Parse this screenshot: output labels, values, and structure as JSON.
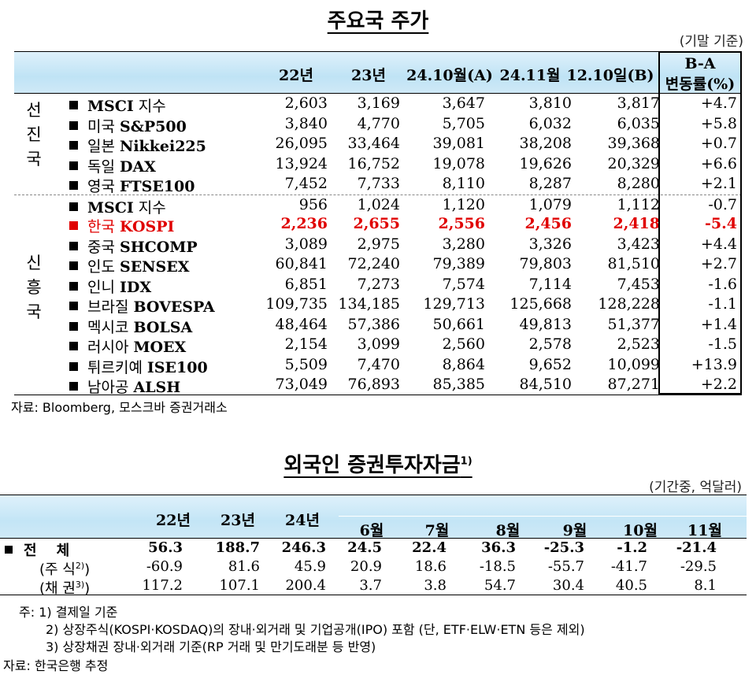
{
  "table1": {
    "title": "주요국 주가",
    "unit": "(기말 기준)",
    "headers": [
      "22년",
      "23년",
      "24.10월(A)",
      "24.11월",
      "12.10일(B)"
    ],
    "change_header_1": "B-A",
    "change_header_2": "변동률(%)",
    "groups": [
      {
        "label": [
          "선",
          "진",
          "국"
        ]
      },
      {
        "label": [
          "신",
          "흥",
          "국"
        ]
      }
    ],
    "rows": [
      {
        "ko": "MSCI",
        "en": "지수",
        "vals": [
          "2,603",
          "3,169",
          "3,647",
          "3,810",
          "3,817"
        ],
        "chg": "+4.7"
      },
      {
        "ko": "미국",
        "en": "S&P500",
        "vals": [
          "3,840",
          "4,770",
          "5,705",
          "6,032",
          "6,035"
        ],
        "chg": "+5.8"
      },
      {
        "ko": "일본",
        "en": "Nikkei225",
        "vals": [
          "26,095",
          "33,464",
          "39,081",
          "38,208",
          "39,368"
        ],
        "chg": "+0.7"
      },
      {
        "ko": "독일",
        "en": "DAX",
        "vals": [
          "13,924",
          "16,752",
          "19,078",
          "19,626",
          "20,329"
        ],
        "chg": "+6.6"
      },
      {
        "ko": "영국",
        "en": "FTSE100",
        "vals": [
          "7,452",
          "7,733",
          "8,110",
          "8,287",
          "8,280"
        ],
        "chg": "+2.1"
      },
      {
        "ko": "MSCI",
        "en": "지수",
        "vals": [
          "956",
          "1,024",
          "1,120",
          "1,079",
          "1,112"
        ],
        "chg": "-0.7"
      },
      {
        "ko": "한국",
        "en": "KOSPI",
        "vals": [
          "2,236",
          "2,655",
          "2,556",
          "2,456",
          "2,418"
        ],
        "chg": "-5.4"
      },
      {
        "ko": "중국",
        "en": "SHCOMP",
        "vals": [
          "3,089",
          "2,975",
          "3,280",
          "3,326",
          "3,423"
        ],
        "chg": "+4.4"
      },
      {
        "ko": "인도",
        "en": "SENSEX",
        "vals": [
          "60,841",
          "72,240",
          "79,389",
          "79,803",
          "81,510"
        ],
        "chg": "+2.7"
      },
      {
        "ko": "인니",
        "en": "IDX",
        "vals": [
          "6,851",
          "7,273",
          "7,574",
          "7,114",
          "7,453"
        ],
        "chg": "-1.6"
      },
      {
        "ko": "브라질",
        "en": "BOVESPA",
        "vals": [
          "109,735",
          "134,185",
          "129,713",
          "125,668",
          "128,228"
        ],
        "chg": "-1.1"
      },
      {
        "ko": "멕시코",
        "en": "BOLSA",
        "vals": [
          "48,464",
          "57,386",
          "50,661",
          "49,813",
          "51,377"
        ],
        "chg": "+1.4"
      },
      {
        "ko": "러시아",
        "en": "MOEX",
        "vals": [
          "2,154",
          "3,099",
          "2,560",
          "2,578",
          "2,523"
        ],
        "chg": "-1.5"
      },
      {
        "ko": "튀르키예",
        "en": "ISE100",
        "vals": [
          "5,509",
          "7,470",
          "8,864",
          "9,652",
          "10,099"
        ],
        "chg": "+13.9"
      },
      {
        "ko": "남아공",
        "en": "ALSH",
        "vals": [
          "73,049",
          "76,893",
          "85,385",
          "84,510",
          "87,271"
        ],
        "chg": "+2.2"
      }
    ],
    "source": "자료: Bloomberg, 모스크바 증권거래소"
  },
  "table2": {
    "title": "외국인 증권투자자금",
    "title_sup": "1)",
    "unit": "(기간중, 억달러)",
    "headers": [
      "22년",
      "23년",
      "24년",
      "6월",
      "7월",
      "8월",
      "9월",
      "10월",
      "11월"
    ],
    "rows": [
      {
        "label": "전    체",
        "sup": "",
        "vals": [
          "56.3",
          "188.7",
          "246.3",
          "24.5",
          "22.4",
          "36.3",
          "-25.3",
          "-1.2",
          "-21.4"
        ]
      },
      {
        "label": "(주 식",
        "sup": "2)",
        "vals": [
          "-60.9",
          "81.6",
          "45.9",
          "20.9",
          "18.6",
          "-18.5",
          "-55.7",
          "-41.7",
          "-29.5"
        ]
      },
      {
        "label": "(채 권",
        "sup": "3)",
        "vals": [
          "117.2",
          "107.1",
          "200.4",
          "3.7",
          "3.8",
          "54.7",
          "30.4",
          "40.5",
          "8.1"
        ]
      }
    ],
    "notes": [
      "주: 1) 결제일 기준",
      "2) 상장주식(KOSPI·KOSDAQ)의 장내·외거래 및 기업공개(IPO) 포함 (단, ETF·ELW·ETN 등은 제외)",
      "3) 상장채권 장내·외거래 기준(RP 거래 및 만기도래분 등 반영)"
    ],
    "source": "자료: 한국은행 추정"
  },
  "colors": {
    "header_bg": "#c6e6f6",
    "highlight": "#e00000"
  }
}
